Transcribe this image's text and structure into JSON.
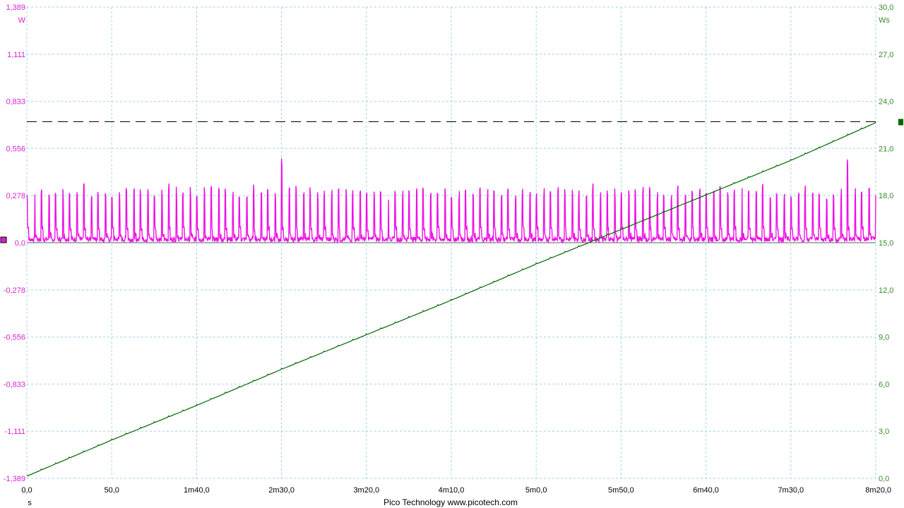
{
  "colors": {
    "left_axis": "#d91ed0",
    "right_axis": "#3a8a2a",
    "power_trace": "#ee10e6",
    "energy_trace": "#006400",
    "grid": "#9fd2e6",
    "reference": "#000000",
    "text": "#000000"
  },
  "footer": {
    "x_unit": "s",
    "credit": "Pico Technology   www.picotech.com"
  },
  "chart_data": {
    "type": "line",
    "x_range_s": [
      0,
      500
    ],
    "x_ticks": [
      {
        "value": 0,
        "label": "0,0"
      },
      {
        "value": 50,
        "label": "50,0"
      },
      {
        "value": 100,
        "label": "1m40,0"
      },
      {
        "value": 150,
        "label": "2m30,0"
      },
      {
        "value": 200,
        "label": "3m20,0"
      },
      {
        "value": 250,
        "label": "4m10,0"
      },
      {
        "value": 300,
        "label": "5m0,0"
      },
      {
        "value": 350,
        "label": "5m50,0"
      },
      {
        "value": 400,
        "label": "6m40,0"
      },
      {
        "value": 450,
        "label": "7m30,0"
      },
      {
        "value": 500,
        "label": "8m20,0"
      }
    ],
    "y_left": {
      "unit": "W",
      "range": [
        -1.389,
        1.389
      ],
      "ticks": [
        {
          "value": 1.389,
          "label": "1,389"
        },
        {
          "value": 1.111,
          "label": "1,111"
        },
        {
          "value": 0.833,
          "label": "0,833"
        },
        {
          "value": 0.556,
          "label": "0,556"
        },
        {
          "value": 0.278,
          "label": "0,278"
        },
        {
          "value": 0.0,
          "label": "0,0"
        },
        {
          "value": -0.278,
          "label": "-0,278"
        },
        {
          "value": -0.556,
          "label": "-0,556"
        },
        {
          "value": -0.833,
          "label": "-0,833"
        },
        {
          "value": -1.111,
          "label": "-1,111"
        },
        {
          "value": -1.389,
          "label": "-1,389"
        }
      ]
    },
    "y_right": {
      "unit": "Ws",
      "range": [
        0,
        30
      ],
      "ticks": [
        {
          "value": 30,
          "label": "30,0"
        },
        {
          "value": 27,
          "label": "27,0"
        },
        {
          "value": 24,
          "label": "24,0"
        },
        {
          "value": 21,
          "label": "21,0"
        },
        {
          "value": 18,
          "label": "18,0"
        },
        {
          "value": 15,
          "label": "15,0"
        },
        {
          "value": 12,
          "label": "12,0"
        },
        {
          "value": 9,
          "label": "9,0"
        },
        {
          "value": 6,
          "label": "6,0"
        },
        {
          "value": 3,
          "label": "3,0"
        },
        {
          "value": 0,
          "label": "0,0"
        }
      ]
    },
    "grid": true,
    "reference_line_ws": 22.7,
    "series": [
      {
        "axis": "left",
        "baseline_w": 0.02,
        "pulse_period_s": 8.33,
        "pulse_peak_w_typical": 0.33,
        "pulse_peak_w_max": 0.5,
        "pulse_pattern": [
          0.3,
          0.34,
          0.33,
          0.31,
          0.35,
          0.32
        ]
      },
      {
        "axis": "right",
        "x": [
          0,
          50,
          100,
          150,
          200,
          250,
          300,
          350,
          400,
          450,
          500
        ],
        "y": [
          0.2,
          2.5,
          4.7,
          7.0,
          9.2,
          11.4,
          13.7,
          15.9,
          18.1,
          20.3,
          22.7
        ]
      }
    ]
  }
}
